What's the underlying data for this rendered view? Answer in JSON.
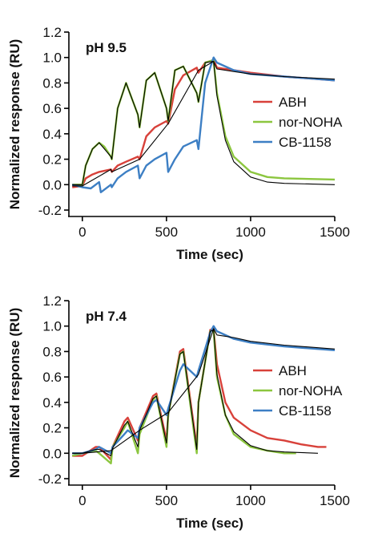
{
  "chart_data": [
    {
      "type": "line",
      "title": "pH 9.5",
      "xlabel": "Time (sec)",
      "ylabel": "Normalized response (RU)",
      "xlim": [
        -80,
        1500
      ],
      "ylim": [
        -0.2,
        1.2
      ],
      "xticks": [
        0,
        500,
        1000,
        1500
      ],
      "yticks": [
        -0.2,
        0.0,
        0.2,
        0.4,
        0.6,
        0.8,
        1.0,
        1.2
      ],
      "legend_position": "right",
      "series": [
        {
          "name": "ABH",
          "color": "#d8413a",
          "x": [
            -60,
            0,
            20,
            60,
            100,
            170,
            175,
            210,
            260,
            330,
            340,
            380,
            430,
            500,
            510,
            550,
            600,
            680,
            690,
            730,
            780,
            800,
            900,
            1000,
            1200,
            1500
          ],
          "y": [
            -0.02,
            -0.01,
            0.05,
            0.08,
            0.1,
            0.12,
            0.1,
            0.15,
            0.18,
            0.22,
            0.2,
            0.38,
            0.45,
            0.5,
            0.48,
            0.75,
            0.86,
            0.92,
            0.88,
            0.96,
            0.98,
            0.92,
            0.9,
            0.88,
            0.85,
            0.82
          ]
        },
        {
          "name": "nor-NOHA",
          "color": "#8cc63f",
          "x": [
            -60,
            0,
            20,
            60,
            100,
            130,
            170,
            175,
            210,
            260,
            330,
            340,
            380,
            430,
            500,
            510,
            550,
            600,
            680,
            690,
            730,
            780,
            800,
            850,
            900,
            1000,
            1100,
            1200,
            1500
          ],
          "y": [
            0.0,
            0.0,
            0.15,
            0.28,
            0.33,
            0.3,
            0.22,
            0.2,
            0.6,
            0.8,
            0.55,
            0.45,
            0.82,
            0.88,
            0.6,
            0.5,
            0.9,
            0.93,
            0.72,
            0.65,
            0.96,
            0.98,
            0.72,
            0.38,
            0.22,
            0.1,
            0.06,
            0.05,
            0.04
          ]
        },
        {
          "name": "CB-1158",
          "color": "#3d7fc4",
          "x": [
            -60,
            0,
            50,
            100,
            110,
            170,
            175,
            210,
            260,
            330,
            340,
            380,
            430,
            500,
            510,
            550,
            600,
            680,
            690,
            730,
            780,
            800,
            900,
            1000,
            1200,
            1500
          ],
          "y": [
            0.0,
            -0.02,
            -0.03,
            0.02,
            -0.06,
            0.0,
            -0.02,
            0.05,
            0.1,
            0.15,
            0.05,
            0.15,
            0.2,
            0.25,
            0.1,
            0.2,
            0.3,
            0.35,
            0.28,
            0.8,
            1.0,
            0.96,
            0.9,
            0.87,
            0.85,
            0.82
          ]
        }
      ],
      "fits": [
        {
          "color": "#000000",
          "x": [
            -60,
            0,
            170,
            175,
            340,
            510,
            690,
            780,
            800,
            900,
            1000,
            1200,
            1500
          ],
          "y": [
            -0.01,
            -0.01,
            0.12,
            0.1,
            0.2,
            0.48,
            0.9,
            0.97,
            0.91,
            0.89,
            0.87,
            0.85,
            0.83
          ]
        },
        {
          "color": "#000000",
          "x": [
            -60,
            0,
            20,
            60,
            100,
            170,
            175,
            210,
            260,
            330,
            340,
            380,
            430,
            500,
            510,
            550,
            600,
            680,
            690,
            730,
            780,
            800,
            850,
            900,
            1000,
            1100,
            1200,
            1500
          ],
          "y": [
            0.0,
            0.0,
            0.15,
            0.28,
            0.33,
            0.22,
            0.2,
            0.6,
            0.8,
            0.55,
            0.45,
            0.82,
            0.88,
            0.6,
            0.5,
            0.9,
            0.93,
            0.72,
            0.65,
            0.96,
            0.97,
            0.7,
            0.35,
            0.18,
            0.06,
            0.02,
            0.01,
            0.0
          ]
        }
      ]
    },
    {
      "type": "line",
      "title": "pH 7.4",
      "xlabel": "Time (sec)",
      "ylabel": "Normalized response (RU)",
      "xlim": [
        -80,
        1500
      ],
      "ylim": [
        -0.2,
        1.2
      ],
      "xticks": [
        0,
        500,
        1000,
        1500
      ],
      "yticks": [
        -0.2,
        0.0,
        0.2,
        0.4,
        0.6,
        0.8,
        1.0,
        1.2
      ],
      "legend_position": "right",
      "series": [
        {
          "name": "ABH",
          "color": "#d8413a",
          "x": [
            -60,
            0,
            80,
            100,
            170,
            180,
            250,
            270,
            330,
            340,
            420,
            440,
            500,
            510,
            580,
            600,
            680,
            690,
            760,
            780,
            800,
            850,
            900,
            1000,
            1100,
            1200,
            1300,
            1400,
            1450
          ],
          "y": [
            -0.02,
            -0.02,
            0.05,
            0.05,
            -0.05,
            0.05,
            0.25,
            0.28,
            0.1,
            0.2,
            0.45,
            0.47,
            0.1,
            0.3,
            0.8,
            0.82,
            0.05,
            0.4,
            0.97,
            0.98,
            0.7,
            0.4,
            0.28,
            0.18,
            0.12,
            0.1,
            0.07,
            0.05,
            0.05
          ]
        },
        {
          "name": "nor-NOHA",
          "color": "#8cc63f",
          "x": [
            -60,
            0,
            80,
            100,
            170,
            180,
            250,
            270,
            330,
            340,
            420,
            440,
            500,
            510,
            580,
            600,
            680,
            690,
            760,
            780,
            800,
            850,
            900,
            1000,
            1100,
            1200,
            1270
          ],
          "y": [
            -0.02,
            0.0,
            0.02,
            0.0,
            -0.08,
            0.05,
            0.2,
            0.25,
            0.0,
            0.15,
            0.42,
            0.45,
            0.05,
            0.3,
            0.78,
            0.8,
            0.0,
            0.4,
            0.96,
            0.97,
            0.6,
            0.3,
            0.15,
            0.05,
            0.02,
            0.0,
            0.0
          ]
        },
        {
          "name": "CB-1158",
          "color": "#3d7fc4",
          "x": [
            -60,
            0,
            80,
            100,
            170,
            180,
            250,
            270,
            330,
            340,
            420,
            440,
            500,
            510,
            580,
            600,
            680,
            690,
            760,
            780,
            800,
            900,
            1000,
            1200,
            1500
          ],
          "y": [
            0.0,
            0.0,
            0.03,
            0.05,
            0.0,
            0.05,
            0.15,
            0.18,
            0.12,
            0.2,
            0.4,
            0.42,
            0.3,
            0.35,
            0.65,
            0.7,
            0.6,
            0.65,
            0.95,
            1.0,
            0.96,
            0.9,
            0.87,
            0.84,
            0.81
          ]
        }
      ],
      "fits": [
        {
          "color": "#000000",
          "x": [
            -60,
            0,
            80,
            100,
            170,
            180,
            250,
            270,
            330,
            340,
            420,
            440,
            500,
            510,
            580,
            600,
            680,
            690,
            760,
            780,
            800,
            850,
            900,
            1000,
            1100,
            1200,
            1400
          ],
          "y": [
            0.0,
            0.0,
            0.03,
            0.03,
            -0.02,
            0.04,
            0.22,
            0.25,
            0.05,
            0.18,
            0.43,
            0.45,
            0.08,
            0.3,
            0.78,
            0.8,
            0.03,
            0.4,
            0.96,
            0.97,
            0.62,
            0.3,
            0.17,
            0.06,
            0.02,
            0.01,
            0.0
          ]
        },
        {
          "color": "#000000",
          "x": [
            -60,
            0,
            170,
            340,
            510,
            690,
            780,
            800,
            900,
            1000,
            1200,
            1500
          ],
          "y": [
            0.0,
            0.0,
            0.02,
            0.18,
            0.32,
            0.62,
            0.98,
            0.93,
            0.91,
            0.88,
            0.85,
            0.82
          ]
        }
      ]
    }
  ]
}
